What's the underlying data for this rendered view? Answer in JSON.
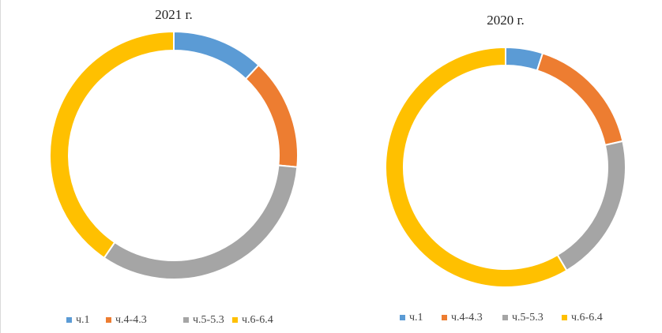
{
  "chart_data": [
    {
      "type": "pie",
      "title": "2021 г.",
      "categories": [
        "ч.1",
        "ч.4-4.3",
        "ч.5-5.3",
        "ч.6-6.4"
      ],
      "values": [
        12,
        14.5,
        33,
        40.5
      ],
      "colors": [
        "#5b9bd5",
        "#ed7d31",
        "#a5a5a5",
        "#ffc000"
      ]
    },
    {
      "type": "pie",
      "title": "2020 г.",
      "categories": [
        "ч.1",
        "ч.4-4.3",
        "ч.5-5.3",
        "ч.6-6.4"
      ],
      "values": [
        5,
        16.5,
        20,
        58.5
      ],
      "colors": [
        "#5b9bd5",
        "#ed7d31",
        "#a5a5a5",
        "#ffc000"
      ]
    }
  ]
}
